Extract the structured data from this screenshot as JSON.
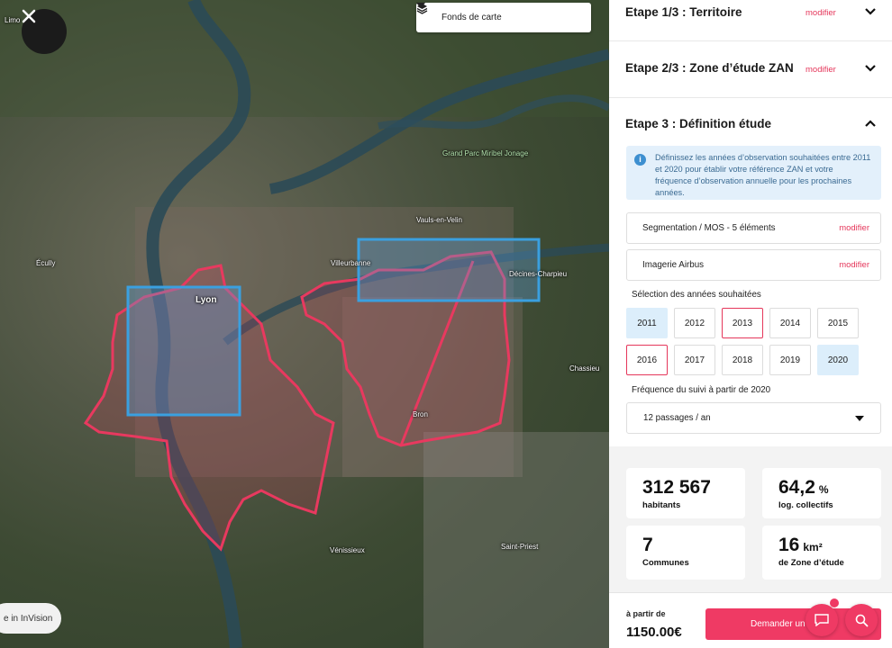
{
  "map": {
    "basemap_label": "Fonds de carte",
    "invision_label": "e in InVision",
    "places": {
      "limo": "Limo",
      "ecully": "Écully",
      "lyon": "Lyon",
      "villeurbanne": "Villeurbanne",
      "vaulx": "Vauls-en-Velin",
      "miribel": "Grand Parc Miribel Jonage",
      "decines": "Décines-Charpieu",
      "chassieu": "Chassieu",
      "bron": "Bron",
      "venissieux": "Vénissieux",
      "saint_priest": "Saint-Priest"
    },
    "colors": {
      "zone_outline": "#e8395f",
      "selection_box": "#3aa0e0"
    }
  },
  "panel": {
    "step1": {
      "title": "Etape 1/3 : Territoire",
      "edit": "modifier"
    },
    "step2": {
      "title": "Etape 2/3 : Zone d’étude ZAN",
      "edit": "modifier"
    },
    "step3": {
      "title": "Etape 3 : Définition étude",
      "info": "Définissez les années d’observation souhaitées entre 2011 et 2020 pour établir votre référence ZAN et votre fréquence d’observation annuelle pour les prochaines années.",
      "option1": {
        "label": "Segmentation / MOS - 5 éléments",
        "edit": "modifier"
      },
      "option2": {
        "label": "Imagerie Airbus",
        "edit": "modifier"
      },
      "years_label": "Sélection des années souhaitées",
      "years": [
        {
          "label": "2011",
          "state": "sel"
        },
        {
          "label": "2012",
          "state": ""
        },
        {
          "label": "2013",
          "state": "red"
        },
        {
          "label": "2014",
          "state": ""
        },
        {
          "label": "2015",
          "state": ""
        },
        {
          "label": "2016",
          "state": "red"
        },
        {
          "label": "2017",
          "state": ""
        },
        {
          "label": "2018",
          "state": ""
        },
        {
          "label": "2019",
          "state": ""
        },
        {
          "label": "2020",
          "state": "sel"
        }
      ],
      "freq_label": "Fréquence du suivi à partir de 2020",
      "freq_value": "12 passages / an"
    },
    "stats": {
      "population": {
        "value": "312 567",
        "label": "habitants"
      },
      "collective": {
        "value": "64,2",
        "unit": "%",
        "label": "log. collectifs"
      },
      "communes": {
        "value": "7",
        "label": "Communes"
      },
      "area": {
        "value": "16",
        "unit": "km²",
        "label": "de Zone d’étude"
      }
    },
    "footer": {
      "from": "à partir de",
      "price": "1150.00€",
      "order": "Demander un devis"
    },
    "accent": "#ef3a64"
  }
}
